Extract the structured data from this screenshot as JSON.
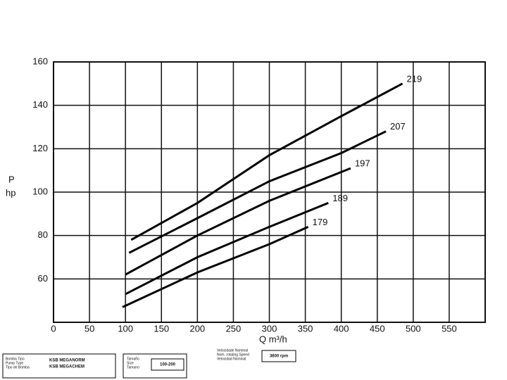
{
  "chart_data": {
    "type": "line",
    "y_label": "P",
    "y_unit": "hp",
    "x_label": "Q m³/h",
    "xlim": [
      0,
      600
    ],
    "xticks": [
      0,
      50,
      100,
      150,
      200,
      250,
      300,
      350,
      400,
      450,
      500,
      550
    ],
    "ylim": [
      40,
      160
    ],
    "yticks": [
      60,
      80,
      100,
      120,
      140,
      160
    ],
    "grid": true,
    "series": [
      {
        "name": "219",
        "color": "#000000",
        "x": [
          108,
          200,
          300,
          400,
          485
        ],
        "values": [
          78,
          95,
          117,
          135,
          150
        ]
      },
      {
        "name": "207",
        "color": "#000000",
        "x": [
          105,
          200,
          300,
          400,
          462
        ],
        "values": [
          72,
          88,
          105,
          118,
          128
        ]
      },
      {
        "name": "197",
        "color": "#000000",
        "x": [
          100,
          200,
          300,
          413
        ],
        "values": [
          62,
          80,
          96,
          111
        ]
      },
      {
        "name": "189",
        "color": "#000000",
        "x": [
          100,
          200,
          300,
          382
        ],
        "values": [
          53,
          70,
          84,
          95
        ]
      },
      {
        "name": "179",
        "color": "#000000",
        "x": [
          96,
          200,
          300,
          354
        ],
        "values": [
          47,
          63,
          76,
          84
        ]
      }
    ]
  },
  "footer": {
    "pump_type_labels": [
      "Bomba Tipo",
      "Pump Type",
      "Tipo de Bomba"
    ],
    "pump_type": [
      "KSB MEGANORM",
      "KSB MEGACHEM"
    ],
    "size_labels": [
      "Tamaño",
      "Size",
      "Tamano"
    ],
    "size": "100-200",
    "speed_labels": [
      "Velocidade Nominal",
      "Nom. rotating Speed",
      "Velocidad Nominal"
    ],
    "speed": "3600 rpm"
  }
}
